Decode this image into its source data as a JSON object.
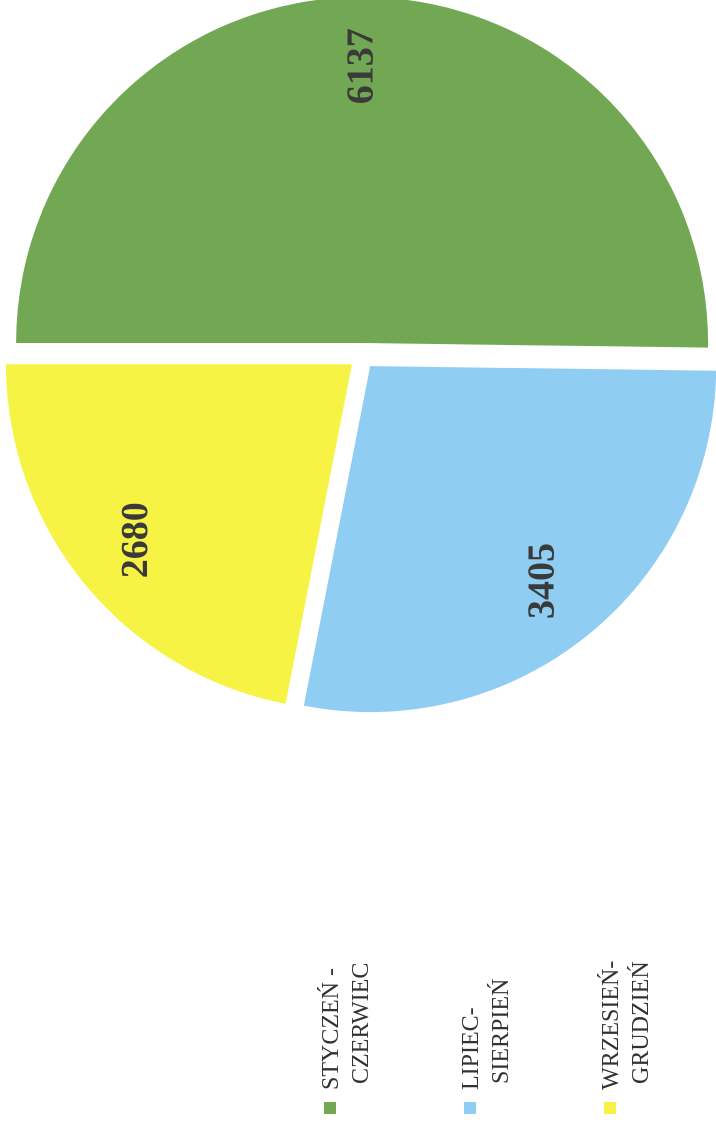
{
  "chart_data": {
    "type": "pie",
    "categories": [
      "STYCZEŃ - CZERWIEC",
      "LIPIEC- SIERPIEŃ",
      "WRZESIEŃ- GRUDZIEŃ"
    ],
    "values": [
      6137,
      3405,
      2680
    ],
    "colors": [
      "#72a853",
      "#90cdf3",
      "#f6f345"
    ],
    "legend": "bottom"
  }
}
